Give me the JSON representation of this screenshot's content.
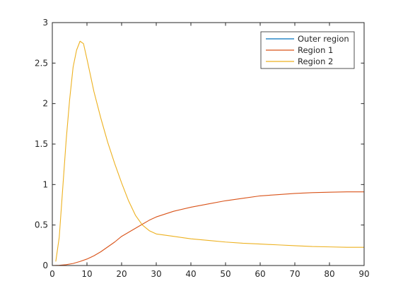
{
  "chart_data": {
    "type": "line",
    "title": "",
    "xlabel": "",
    "ylabel": "",
    "xlim": [
      0,
      90
    ],
    "ylim": [
      0,
      3
    ],
    "x_ticks": [
      0,
      10,
      20,
      30,
      40,
      50,
      60,
      70,
      80,
      90
    ],
    "y_ticks": [
      0,
      0.5,
      1,
      1.5,
      2,
      2.5,
      3
    ],
    "x_tick_labels": [
      "0",
      "10",
      "20",
      "30",
      "40",
      "50",
      "60",
      "70",
      "80",
      "90"
    ],
    "y_tick_labels": [
      "0",
      "0.5",
      "1",
      "1.5",
      "2",
      "2.5",
      "3"
    ],
    "grid": false,
    "legend_position": "top-right",
    "series": [
      {
        "name": "Outer region",
        "color": "#0072BD",
        "x": [
          0,
          10,
          20,
          30,
          40,
          50,
          60,
          70,
          80,
          90
        ],
        "y": [
          0,
          0,
          0,
          0,
          0,
          0,
          0,
          0,
          0,
          0
        ]
      },
      {
        "name": "Region 1",
        "color": "#D95319",
        "x": [
          0,
          2,
          4,
          6,
          8,
          10,
          12,
          14,
          16,
          18,
          20,
          22,
          24,
          26,
          28,
          30,
          35,
          40,
          45,
          50,
          55,
          60,
          65,
          70,
          75,
          80,
          85,
          90
        ],
        "y": [
          0,
          0.003,
          0.01,
          0.025,
          0.05,
          0.08,
          0.12,
          0.17,
          0.23,
          0.29,
          0.36,
          0.41,
          0.46,
          0.51,
          0.56,
          0.6,
          0.67,
          0.72,
          0.76,
          0.8,
          0.83,
          0.86,
          0.875,
          0.89,
          0.9,
          0.905,
          0.91,
          0.91
        ]
      },
      {
        "name": "Region 2",
        "color": "#EDB120",
        "x": [
          1,
          2,
          3,
          4,
          5,
          6,
          7,
          8,
          9,
          10,
          11,
          12,
          14,
          16,
          18,
          20,
          22,
          24,
          26,
          28,
          30,
          35,
          40,
          45,
          50,
          55,
          60,
          65,
          70,
          75,
          80,
          85,
          90
        ],
        "y": [
          0.05,
          0.35,
          0.95,
          1.55,
          2.05,
          2.45,
          2.66,
          2.77,
          2.74,
          2.55,
          2.35,
          2.15,
          1.82,
          1.52,
          1.26,
          1.02,
          0.8,
          0.62,
          0.5,
          0.43,
          0.39,
          0.36,
          0.33,
          0.31,
          0.29,
          0.275,
          0.265,
          0.255,
          0.245,
          0.235,
          0.23,
          0.225,
          0.225
        ]
      }
    ]
  }
}
